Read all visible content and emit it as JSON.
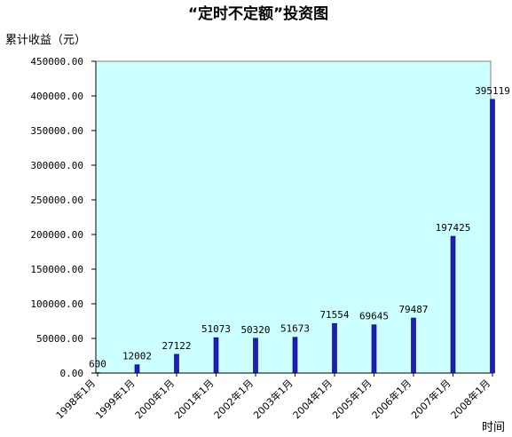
{
  "chart_data": {
    "type": "bar",
    "title": "“定时不定额”投资图",
    "ylabel": "累计收益（元）",
    "xlabel": "时间",
    "categories": [
      "1998年1月",
      "1999年1月",
      "2000年1月",
      "2001年1月",
      "2002年1月",
      "2003年1月",
      "2004年1月",
      "2005年1月",
      "2006年1月",
      "2007年1月",
      "2008年1月"
    ],
    "values": [
      600,
      12002,
      27122,
      51073,
      50320,
      51673,
      71554,
      69645,
      79487,
      197425,
      395119
    ],
    "data_labels": [
      "600",
      "12002",
      "27122",
      "51073",
      "50320",
      "51673",
      "71554",
      "69645",
      "79487",
      "197425",
      "395119"
    ],
    "ylim": [
      0,
      450000
    ],
    "yticks": [
      0,
      50000,
      100000,
      150000,
      200000,
      250000,
      300000,
      350000,
      400000,
      450000
    ],
    "ytick_labels": [
      "0.00",
      "50000.00",
      "100000.00",
      "150000.00",
      "200000.00",
      "250000.00",
      "300000.00",
      "350000.00",
      "400000.00",
      "450000.00"
    ],
    "grid": false,
    "plot_background": "#ccffff",
    "bar_color": "#1f1fb8"
  }
}
